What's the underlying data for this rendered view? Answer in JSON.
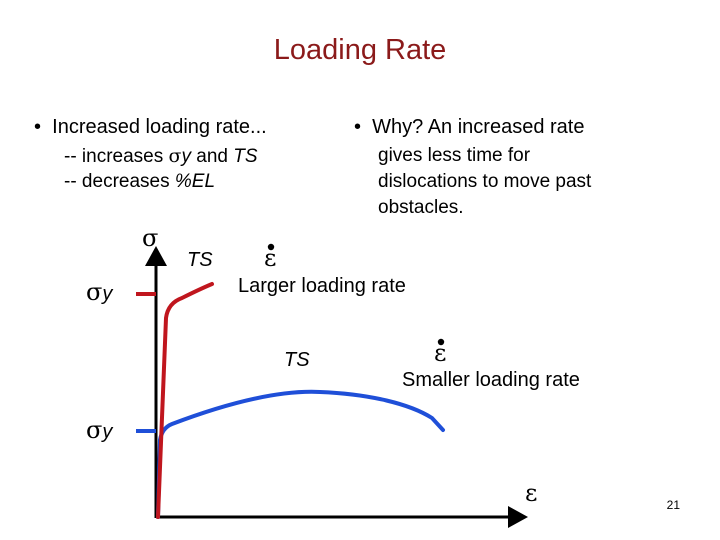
{
  "title": "Loading Rate",
  "left_bullet": {
    "marker": "•",
    "text": "Increased loading rate...",
    "sub1_prefix": "-- increases ",
    "sub1_sigma": "σ",
    "sub1_sub": "y",
    "sub1_suffix": " and ",
    "sub1_ts": "TS",
    "sub2_prefix": "-- decreases ",
    "sub2_el": "%EL"
  },
  "right_bullet": {
    "marker": "•",
    "text": "Why? An increased rate",
    "lines": [
      "gives less time for",
      "dislocations to move past",
      "obstacles."
    ]
  },
  "diagram": {
    "y_axis_symbol": "σ",
    "x_axis_symbol": "ε",
    "sigma_y_symbol": "σ",
    "sigma_y_sub": "y",
    "ts_label": "TS",
    "strain_rate_symbol": "ε",
    "larger_rate_label": "Larger loading rate",
    "smaller_rate_label": "Smaller loading rate",
    "colors": {
      "larger": "#c0161e",
      "smaller": "#1f4fd8",
      "axes": "#000000",
      "title": "#8b1a1a"
    }
  },
  "slide_number": "21"
}
